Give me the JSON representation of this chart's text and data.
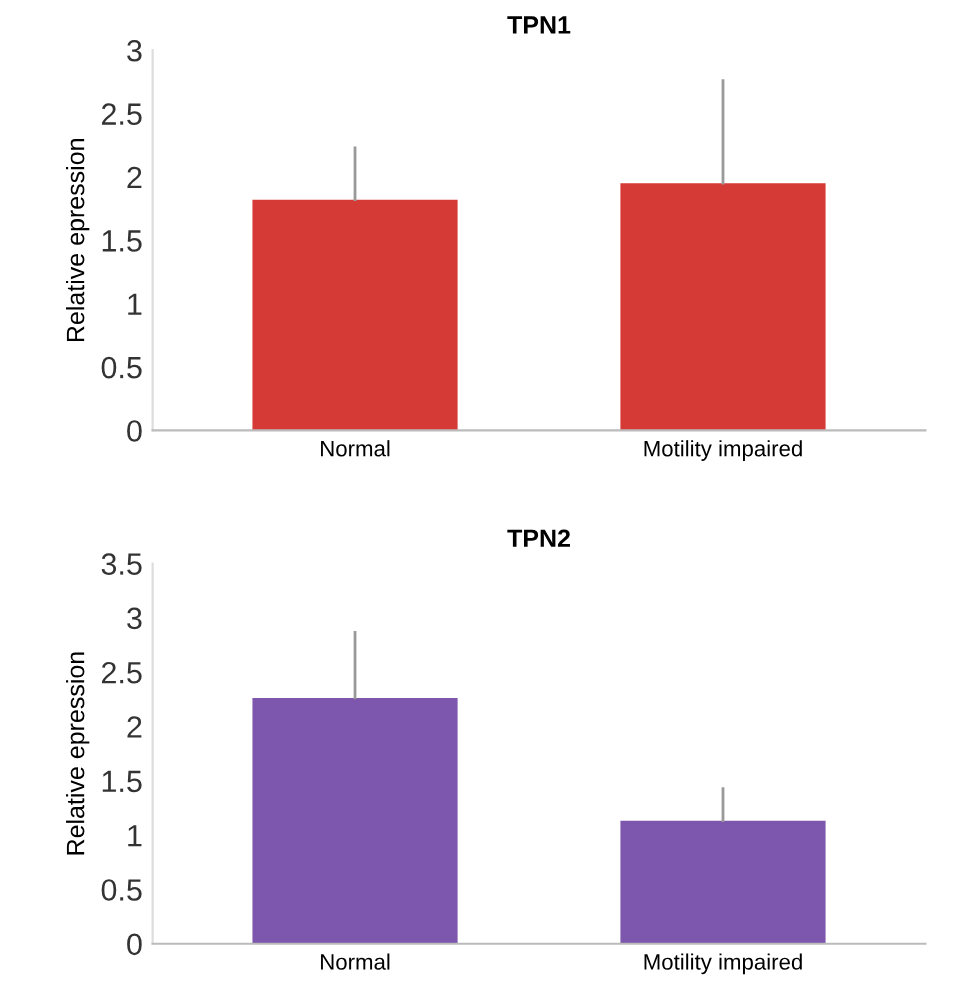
{
  "chart_data": [
    {
      "type": "bar",
      "title": "TPN1",
      "ylabel": "Relative epression",
      "categories": [
        "Normal",
        "Motility impaired"
      ],
      "series": [
        {
          "color": "#d63a36",
          "values": [
            1.81,
            1.94
          ],
          "errors": [
            [
              1.81,
              2.24
            ],
            [
              1.94,
              2.77
            ]
          ]
        }
      ],
      "ylim": [
        0,
        3
      ],
      "yticks": [
        0,
        0.5,
        1,
        1.5,
        2,
        2.5,
        3
      ],
      "grid": false
    },
    {
      "type": "bar",
      "title": "TPN2",
      "ylabel": "Relative epression",
      "categories": [
        "Normal",
        "Motility impaired"
      ],
      "series": [
        {
          "color": "#7d56ad",
          "values": [
            2.25,
            1.12
          ],
          "errors": [
            [
              2.25,
              2.88
            ],
            [
              1.12,
              1.44
            ]
          ]
        }
      ],
      "ylim": [
        0,
        3.5
      ],
      "yticks": [
        0,
        0.5,
        1,
        1.5,
        2,
        2.5,
        3,
        3.5
      ],
      "grid": false
    }
  ]
}
